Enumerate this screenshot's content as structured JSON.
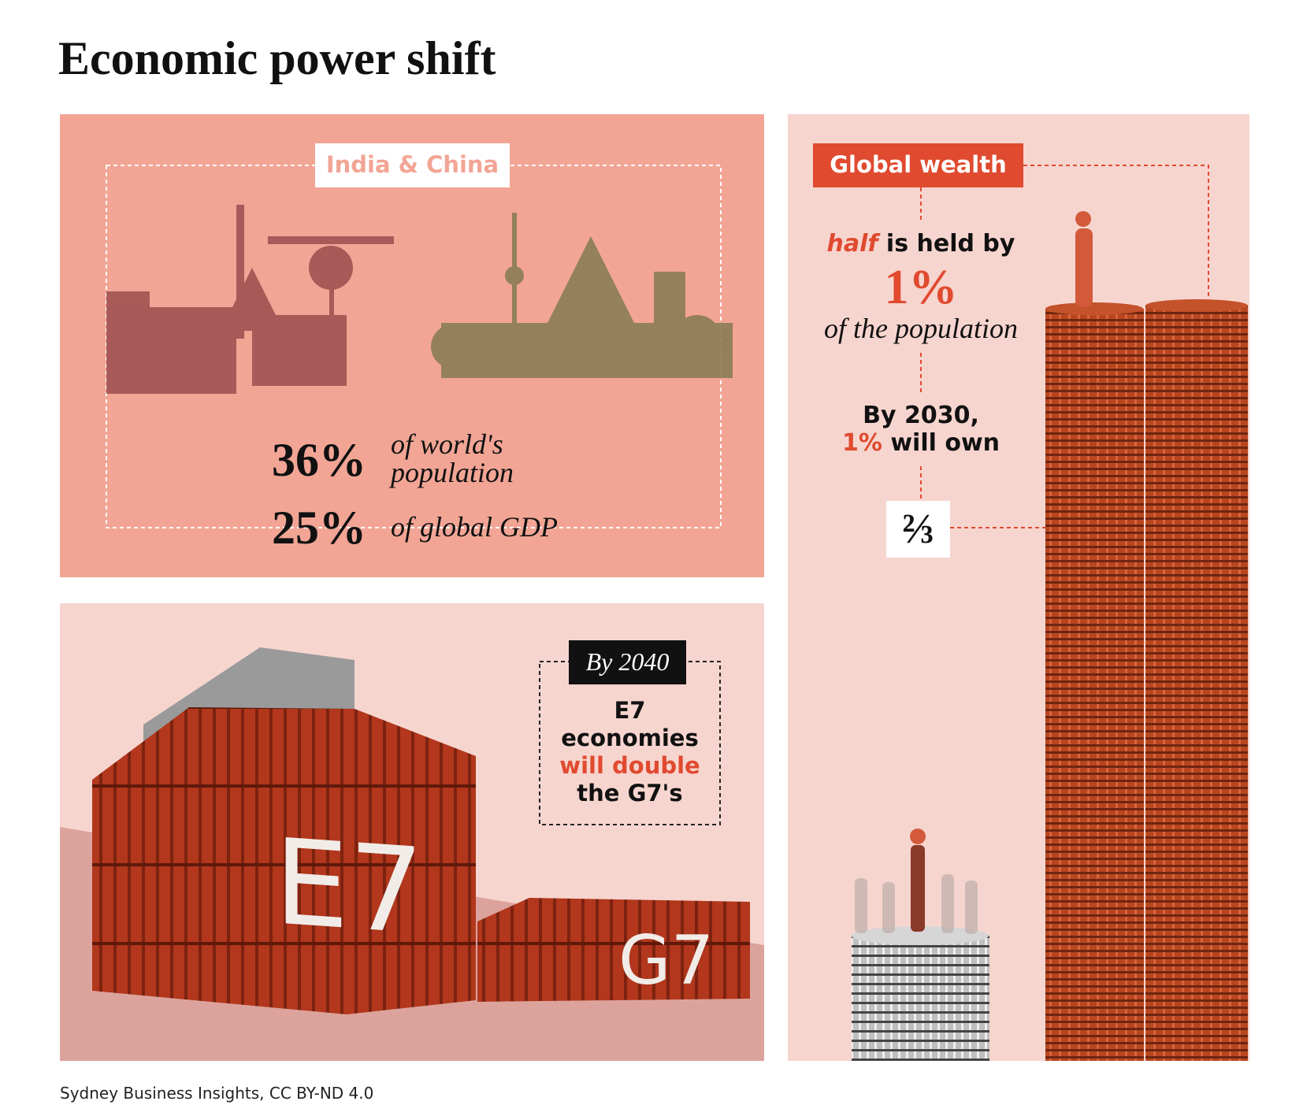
{
  "header": {
    "title": "Economic power shift"
  },
  "india_china": {
    "label": "India & China",
    "stats": [
      {
        "value": "36%",
        "text": "of world's population"
      },
      {
        "value": "25%",
        "text": "of global GDP"
      }
    ]
  },
  "global_wealth": {
    "label": "Global wealth",
    "half": "half",
    "held": "is held by",
    "share": "1%",
    "population": "of the population",
    "year": "By 2030,",
    "share_2030": "1%",
    "will_own": "will own",
    "fraction": "⅔"
  },
  "e7": {
    "badge": "By 2040",
    "line1": "E7",
    "line2": "economies",
    "highlight": "will double",
    "line4": "the G7's",
    "container_e7": "E7",
    "container_g7": "G7"
  },
  "footer": {
    "source": "Sydney Business Insights, CC BY-ND 4.0"
  }
}
